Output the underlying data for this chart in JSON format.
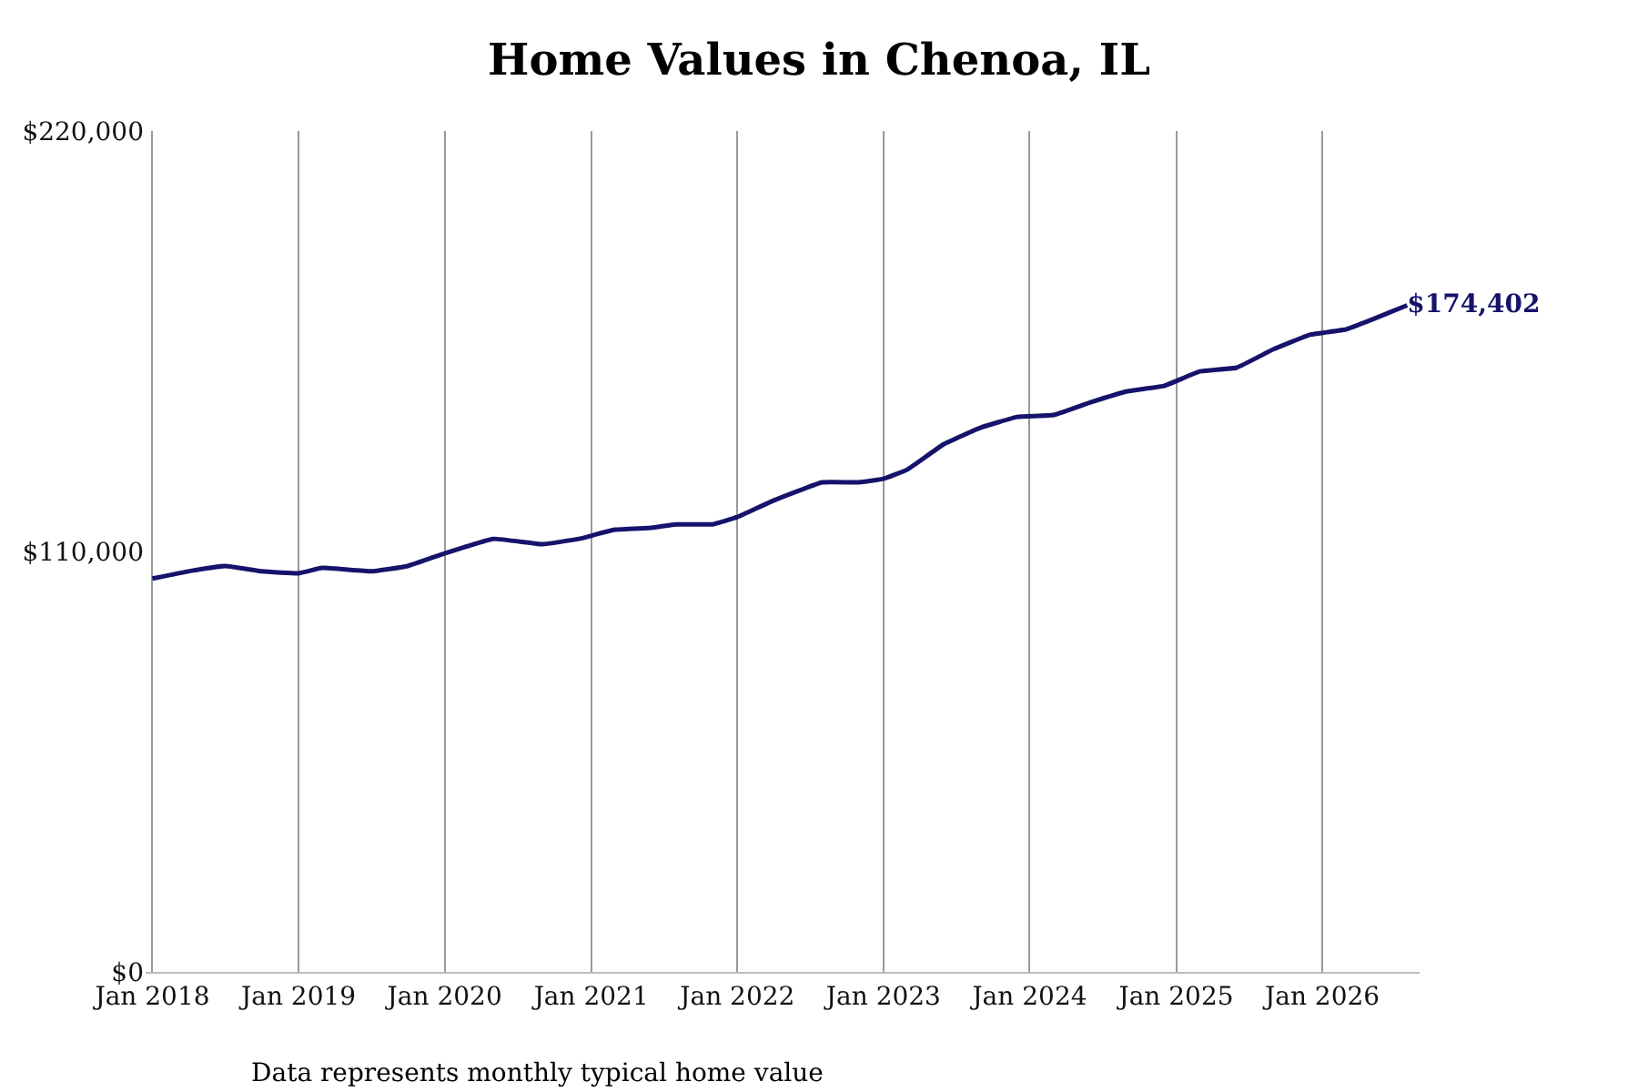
{
  "chart_data": {
    "type": "line",
    "title": "Home Values in Chenoa, IL",
    "x": [
      "2018-01",
      "2018-04",
      "2018-07",
      "2018-10",
      "2019-01",
      "2019-03",
      "2019-07",
      "2019-10",
      "2020-01",
      "2020-05",
      "2020-09",
      "2020-12",
      "2021-03",
      "2021-06",
      "2021-08",
      "2021-11",
      "2022-01",
      "2022-04",
      "2022-08",
      "2022-11",
      "2023-01",
      "2023-03",
      "2023-06",
      "2023-09",
      "2023-12",
      "2024-03",
      "2024-06",
      "2024-09",
      "2024-12",
      "2025-03",
      "2025-06",
      "2025-09",
      "2025-12",
      "2026-03",
      "2026-05",
      "2026-08"
    ],
    "series": [
      {
        "color": "#15136b",
        "values": [
          102900,
          104800,
          106200,
          104800,
          104300,
          105700,
          104800,
          106200,
          109500,
          113300,
          111900,
          113300,
          115700,
          116200,
          117100,
          117100,
          119000,
          123300,
          128100,
          128100,
          129000,
          131400,
          138100,
          142400,
          145200,
          145700,
          149000,
          151900,
          153300,
          157100,
          158100,
          162900,
          166700,
          168100,
          170500,
          174402
        ],
        "value_labels": [
          null,
          null,
          null,
          null,
          null,
          null,
          null,
          null,
          null,
          null,
          null,
          null,
          null,
          null,
          null,
          null,
          null,
          null,
          null,
          null,
          null,
          null,
          null,
          null,
          null,
          null,
          null,
          null,
          null,
          null,
          null,
          null,
          null,
          null,
          null,
          "$174,402"
        ]
      }
    ],
    "xticks": [
      {
        "value": "2018-01",
        "label": "Jan 2018"
      },
      {
        "value": "2019-01",
        "label": "Jan 2019"
      },
      {
        "value": "2020-01",
        "label": "Jan 2020"
      },
      {
        "value": "2021-01",
        "label": "Jan 2021"
      },
      {
        "value": "2022-01",
        "label": "Jan 2022"
      },
      {
        "value": "2023-01",
        "label": "Jan 2023"
      },
      {
        "value": "2024-01",
        "label": "Jan 2024"
      },
      {
        "value": "2025-01",
        "label": "Jan 2025"
      },
      {
        "value": "2026-01",
        "label": "Jan 2026"
      }
    ],
    "ylim": [
      0,
      220000
    ],
    "yticks": [
      {
        "value": 0,
        "label": "$0"
      },
      {
        "value": 110000,
        "label": "$110,000"
      },
      {
        "value": 220000,
        "label": "$220,000"
      }
    ],
    "xlim": [
      "2017-12-15",
      "2026-09-01"
    ],
    "grid": "x",
    "marker": "none",
    "line_style": "solid",
    "annotations": [
      "Data represents monthly typical home value"
    ]
  }
}
